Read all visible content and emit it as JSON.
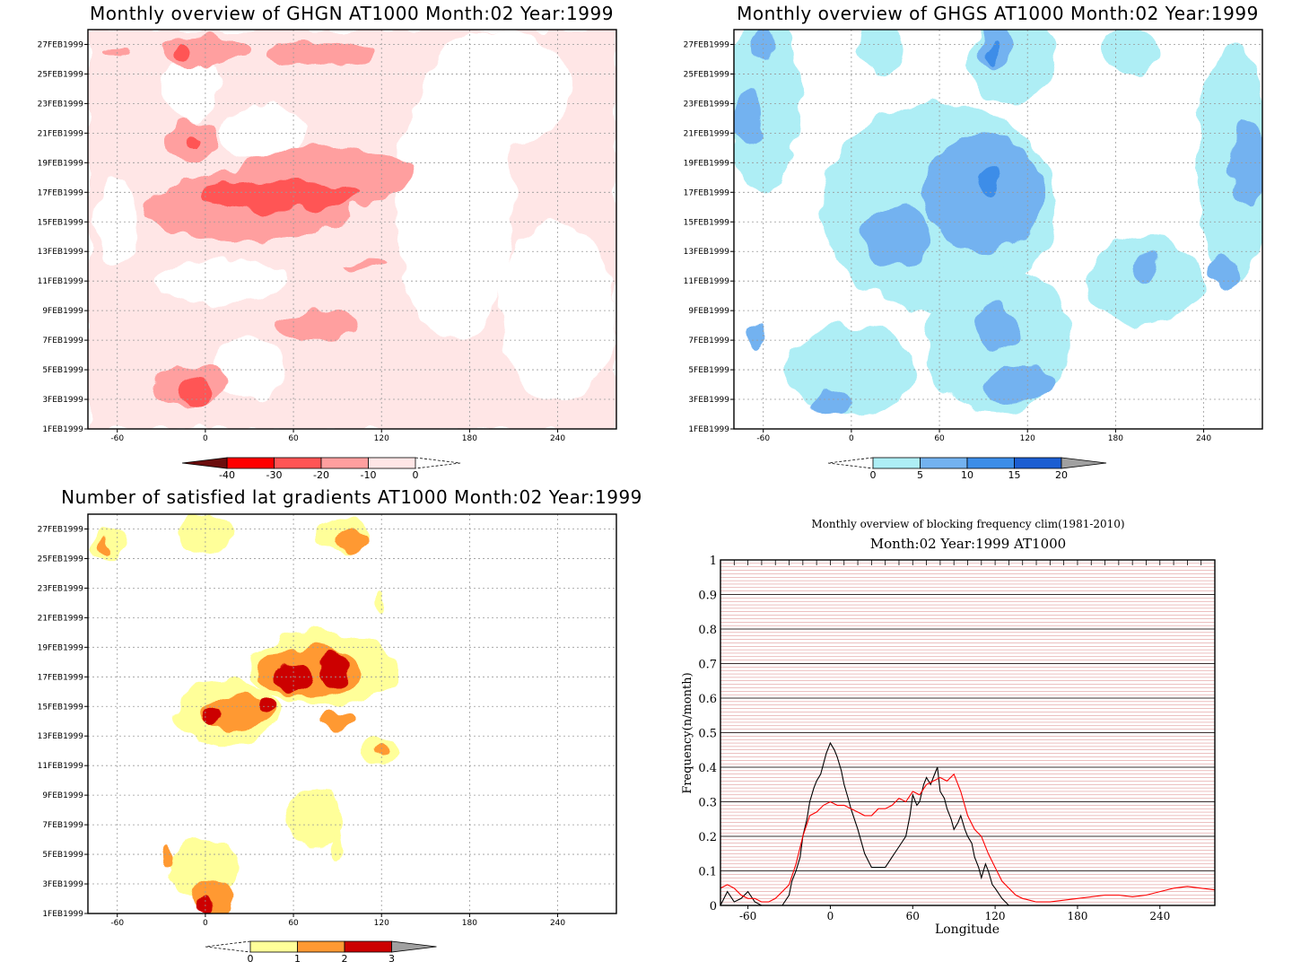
{
  "chart_data": [
    {
      "type": "heatmap",
      "title": "Monthly overview of GHGN AT1000 Month:02 Year:1999",
      "xticks": [
        "-60",
        "0",
        "60",
        "120",
        "180",
        "240"
      ],
      "xlim": [
        -80,
        280
      ],
      "yticks": [
        "1FEB1999",
        "3FEB1999",
        "5FEB1999",
        "7FEB1999",
        "9FEB1999",
        "11FEB1999",
        "13FEB1999",
        "15FEB1999",
        "17FEB1999",
        "19FEB1999",
        "21FEB1999",
        "23FEB1999",
        "25FEB1999",
        "27FEB1999"
      ],
      "colorbar": {
        "labels": [
          "-40",
          "-30",
          "-20",
          "-10",
          "0"
        ],
        "colors": [
          "#6b0c0c",
          "#ff0000",
          "#ff5555",
          "#ff9f9f",
          "#ffe6e6"
        ]
      },
      "regions": [
        {
          "level": 1,
          "cx": 160,
          "cy": 14,
          "rx": 260,
          "ry": 20
        },
        {
          "level": 2,
          "cx": 30,
          "cy": 15,
          "rx": 70,
          "ry": 2.4
        },
        {
          "level": 2,
          "cx": 80,
          "cy": 17,
          "rx": 60,
          "ry": 2
        },
        {
          "level": 3,
          "cx": 50,
          "cy": 15.8,
          "rx": 55,
          "ry": 1
        },
        {
          "level": 2,
          "cx": -10,
          "cy": 19.5,
          "rx": 18,
          "ry": 1.3
        },
        {
          "level": 3,
          "cx": -10,
          "cy": 19.3,
          "rx": 5,
          "ry": 0.4
        },
        {
          "level": 2,
          "cx": -10,
          "cy": 3,
          "rx": 25,
          "ry": 1.3
        },
        {
          "level": 3,
          "cx": -7,
          "cy": 2.6,
          "rx": 11,
          "ry": 0.9
        },
        {
          "level": 2,
          "cx": 0,
          "cy": 25.6,
          "rx": 30,
          "ry": 1
        },
        {
          "level": 3,
          "cx": -15,
          "cy": 25.6,
          "rx": 5,
          "ry": 0.4
        },
        {
          "level": 2,
          "cx": 80,
          "cy": 25.4,
          "rx": 35,
          "ry": 0.8
        },
        {
          "level": 2,
          "cx": 75,
          "cy": 7,
          "rx": 30,
          "ry": 1
        },
        {
          "level": 2,
          "cx": 110,
          "cy": 11,
          "rx": 15,
          "ry": 0.3
        },
        {
          "level": 2,
          "cx": -60,
          "cy": 25.5,
          "rx": 10,
          "ry": 0.2
        }
      ]
    },
    {
      "type": "heatmap",
      "title": "Monthly overview of GHGS AT1000 Month:02 Year:1999",
      "xticks": [
        "-60",
        "0",
        "60",
        "120",
        "180",
        "240"
      ],
      "xlim": [
        -80,
        280
      ],
      "yticks": [
        "1FEB1999",
        "3FEB1999",
        "5FEB1999",
        "7FEB1999",
        "9FEB1999",
        "11FEB1999",
        "13FEB1999",
        "15FEB1999",
        "17FEB1999",
        "19FEB1999",
        "21FEB1999",
        "23FEB1999",
        "25FEB1999",
        "27FEB1999"
      ],
      "colorbar": {
        "labels": [
          "0",
          "5",
          "10",
          "15",
          "20"
        ],
        "colors": [
          "#aeeef5",
          "#73b2f0",
          "#3c8de8",
          "#1c5ed2",
          "#a0a0a0"
        ]
      },
      "regions": [
        {
          "level": 1,
          "cx": 60,
          "cy": 15,
          "rx": 80,
          "ry": 7
        },
        {
          "level": 1,
          "cx": 100,
          "cy": 6,
          "rx": 50,
          "ry": 5
        },
        {
          "level": 1,
          "cx": 0,
          "cy": 4,
          "rx": 45,
          "ry": 3
        },
        {
          "level": 1,
          "cx": -60,
          "cy": 22,
          "rx": 25,
          "ry": 6
        },
        {
          "level": 1,
          "cx": 260,
          "cy": 18,
          "rx": 25,
          "ry": 8
        },
        {
          "level": 1,
          "cx": 200,
          "cy": 10,
          "rx": 40,
          "ry": 3
        },
        {
          "level": 1,
          "cx": 110,
          "cy": 25,
          "rx": 30,
          "ry": 3
        },
        {
          "level": 1,
          "cx": 20,
          "cy": 26,
          "rx": 15,
          "ry": 2
        },
        {
          "level": 1,
          "cx": 190,
          "cy": 25.5,
          "rx": 20,
          "ry": 1.5
        },
        {
          "level": 2,
          "cx": 90,
          "cy": 16,
          "rx": 40,
          "ry": 4
        },
        {
          "level": 2,
          "cx": 30,
          "cy": 13,
          "rx": 25,
          "ry": 2
        },
        {
          "level": 2,
          "cx": 100,
          "cy": 7,
          "rx": 15,
          "ry": 1.5
        },
        {
          "level": 2,
          "cx": 115,
          "cy": 3,
          "rx": 25,
          "ry": 1.2
        },
        {
          "level": 2,
          "cx": -15,
          "cy": 1.8,
          "rx": 15,
          "ry": 1
        },
        {
          "level": 2,
          "cx": -70,
          "cy": 21,
          "rx": 12,
          "ry": 2
        },
        {
          "level": 2,
          "cx": 270,
          "cy": 18,
          "rx": 12,
          "ry": 3
        },
        {
          "level": 2,
          "cx": 98,
          "cy": 26,
          "rx": 12,
          "ry": 1.5
        },
        {
          "level": 2,
          "cx": 200,
          "cy": 11,
          "rx": 10,
          "ry": 1
        },
        {
          "level": 2,
          "cx": 255,
          "cy": 10.5,
          "rx": 10,
          "ry": 1
        },
        {
          "level": 2,
          "cx": -60,
          "cy": 26,
          "rx": 6,
          "ry": 1
        },
        {
          "level": 2,
          "cx": -65,
          "cy": 6,
          "rx": 6,
          "ry": 1
        },
        {
          "level": 3,
          "cx": 93,
          "cy": 16.8,
          "rx": 7,
          "ry": 1
        },
        {
          "level": 3,
          "cx": 96,
          "cy": 25.5,
          "rx": 4,
          "ry": 0.7
        }
      ]
    },
    {
      "type": "heatmap",
      "title": "Number of satisfied lat gradients AT1000 Month:02 Year:1999",
      "xticks": [
        "-60",
        "0",
        "60",
        "120",
        "180",
        "240"
      ],
      "xlim": [
        -80,
        280
      ],
      "yticks": [
        "1FEB1999",
        "3FEB1999",
        "5FEB1999",
        "7FEB1999",
        "9FEB1999",
        "11FEB1999",
        "13FEB1999",
        "15FEB1999",
        "17FEB1999",
        "19FEB1999",
        "21FEB1999",
        "23FEB1999",
        "25FEB1999",
        "27FEB1999"
      ],
      "colorbar": {
        "labels": [
          "0",
          "1",
          "2",
          "3"
        ],
        "colors": [
          "#ffff99",
          "#ff9933",
          "#cc0000",
          "#a0a0a0"
        ]
      },
      "regions": [
        {
          "level": 1,
          "cx": 80,
          "cy": 16.5,
          "rx": 50,
          "ry": 2.5
        },
        {
          "level": 1,
          "cx": 15,
          "cy": 13.5,
          "rx": 35,
          "ry": 2.2
        },
        {
          "level": 1,
          "cx": 0,
          "cy": 25.7,
          "rx": 18,
          "ry": 1.3
        },
        {
          "level": 1,
          "cx": 95,
          "cy": 25.7,
          "rx": 18,
          "ry": 1.2
        },
        {
          "level": 1,
          "cx": -65,
          "cy": 25,
          "rx": 12,
          "ry": 1
        },
        {
          "level": 1,
          "cx": 75,
          "cy": 6.5,
          "rx": 20,
          "ry": 2
        },
        {
          "level": 1,
          "cx": 0,
          "cy": 3,
          "rx": 25,
          "ry": 2
        },
        {
          "level": 1,
          "cx": 118,
          "cy": 11,
          "rx": 12,
          "ry": 1
        },
        {
          "level": 1,
          "cx": 120,
          "cy": 21,
          "rx": 3,
          "ry": 0.7
        },
        {
          "level": 1,
          "cx": 90,
          "cy": 4.5,
          "rx": 4,
          "ry": 1
        },
        {
          "level": 2,
          "cx": 20,
          "cy": 13.5,
          "rx": 25,
          "ry": 1.2
        },
        {
          "level": 2,
          "cx": 70,
          "cy": 16.3,
          "rx": 35,
          "ry": 1.7
        },
        {
          "level": 2,
          "cx": 100,
          "cy": 25.2,
          "rx": 12,
          "ry": 0.7
        },
        {
          "level": 2,
          "cx": -68,
          "cy": 25,
          "rx": 4,
          "ry": 0.5
        },
        {
          "level": 2,
          "cx": 5,
          "cy": 1,
          "rx": 14,
          "ry": 1
        },
        {
          "level": 2,
          "cx": 90,
          "cy": 13,
          "rx": 12,
          "ry": 0.6
        },
        {
          "level": 2,
          "cx": 120,
          "cy": 11,
          "rx": 4,
          "ry": 0.5
        },
        {
          "level": 2,
          "cx": -25,
          "cy": 4,
          "rx": 4,
          "ry": 0.6
        },
        {
          "level": 3,
          "cx": 5,
          "cy": 13.3,
          "rx": 8,
          "ry": 0.7
        },
        {
          "level": 3,
          "cx": 60,
          "cy": 16,
          "rx": 12,
          "ry": 1
        },
        {
          "level": 3,
          "cx": 88,
          "cy": 16.5,
          "rx": 10,
          "ry": 1.1
        },
        {
          "level": 3,
          "cx": 40,
          "cy": 14,
          "rx": 5,
          "ry": 0.6
        },
        {
          "level": 3,
          "cx": 0,
          "cy": 0.6,
          "rx": 7,
          "ry": 0.6
        }
      ]
    },
    {
      "type": "line",
      "title": "Monthly overview of blocking frequency clim(1981-2010)",
      "subtitle": "Month:02 Year:1999  AT1000",
      "xlabel": "Longitude",
      "ylabel": "Frequency(n/month)",
      "xlim": [
        -80,
        280
      ],
      "ylim": [
        0,
        1
      ],
      "xticks": [
        "-60",
        "0",
        "60",
        "120",
        "180",
        "240"
      ],
      "yticks": [
        "0",
        "0.1",
        "0.2",
        "0.3",
        "0.4",
        "0.5",
        "0.6",
        "0.7",
        "0.8",
        "0.9",
        "1"
      ],
      "grid": true,
      "series": [
        {
          "color": "#000000",
          "x": [
            -80,
            -75,
            -70,
            -65,
            -60,
            -55,
            -50,
            -45,
            -40,
            -35,
            -30,
            -28,
            -25,
            -22,
            -20,
            -17,
            -15,
            -12,
            -10,
            -7,
            -5,
            -3,
            0,
            3,
            5,
            8,
            10,
            13,
            15,
            20,
            25,
            30,
            35,
            40,
            45,
            50,
            55,
            58,
            60,
            63,
            65,
            68,
            70,
            73,
            75,
            78,
            80,
            83,
            85,
            88,
            90,
            93,
            95,
            98,
            100,
            103,
            105,
            108,
            110,
            113,
            115,
            118,
            120,
            125,
            130
          ],
          "y": [
            0,
            0.04,
            0.01,
            0.02,
            0.04,
            0.01,
            0,
            0,
            0,
            0,
            0.03,
            0.07,
            0.1,
            0.14,
            0.2,
            0.25,
            0.3,
            0.34,
            0.36,
            0.38,
            0.41,
            0.44,
            0.47,
            0.45,
            0.43,
            0.39,
            0.35,
            0.31,
            0.28,
            0.22,
            0.15,
            0.11,
            0.11,
            0.11,
            0.14,
            0.17,
            0.2,
            0.26,
            0.32,
            0.29,
            0.3,
            0.35,
            0.37,
            0.35,
            0.37,
            0.4,
            0.33,
            0.31,
            0.28,
            0.25,
            0.22,
            0.24,
            0.26,
            0.22,
            0.2,
            0.18,
            0.14,
            0.11,
            0.08,
            0.12,
            0.1,
            0.06,
            0.05,
            0.02,
            0
          ]
        },
        {
          "color": "#ff0000",
          "x": [
            -80,
            -75,
            -70,
            -65,
            -60,
            -55,
            -50,
            -45,
            -40,
            -35,
            -30,
            -25,
            -20,
            -15,
            -10,
            -5,
            0,
            5,
            10,
            15,
            20,
            25,
            30,
            35,
            40,
            45,
            50,
            55,
            60,
            65,
            70,
            75,
            80,
            85,
            90,
            95,
            100,
            105,
            110,
            115,
            120,
            125,
            130,
            135,
            140,
            145,
            150,
            160,
            170,
            180,
            190,
            200,
            210,
            220,
            230,
            240,
            250,
            260,
            270,
            280
          ],
          "y": [
            0.05,
            0.06,
            0.05,
            0.03,
            0.02,
            0.02,
            0.01,
            0.01,
            0.02,
            0.04,
            0.06,
            0.12,
            0.2,
            0.26,
            0.27,
            0.29,
            0.3,
            0.29,
            0.29,
            0.28,
            0.27,
            0.26,
            0.26,
            0.28,
            0.28,
            0.29,
            0.31,
            0.3,
            0.33,
            0.32,
            0.35,
            0.36,
            0.37,
            0.36,
            0.38,
            0.33,
            0.26,
            0.22,
            0.2,
            0.15,
            0.11,
            0.07,
            0.05,
            0.03,
            0.02,
            0.015,
            0.01,
            0.01,
            0.015,
            0.02,
            0.025,
            0.03,
            0.03,
            0.025,
            0.03,
            0.04,
            0.05,
            0.055,
            0.05,
            0.045
          ]
        }
      ]
    }
  ]
}
